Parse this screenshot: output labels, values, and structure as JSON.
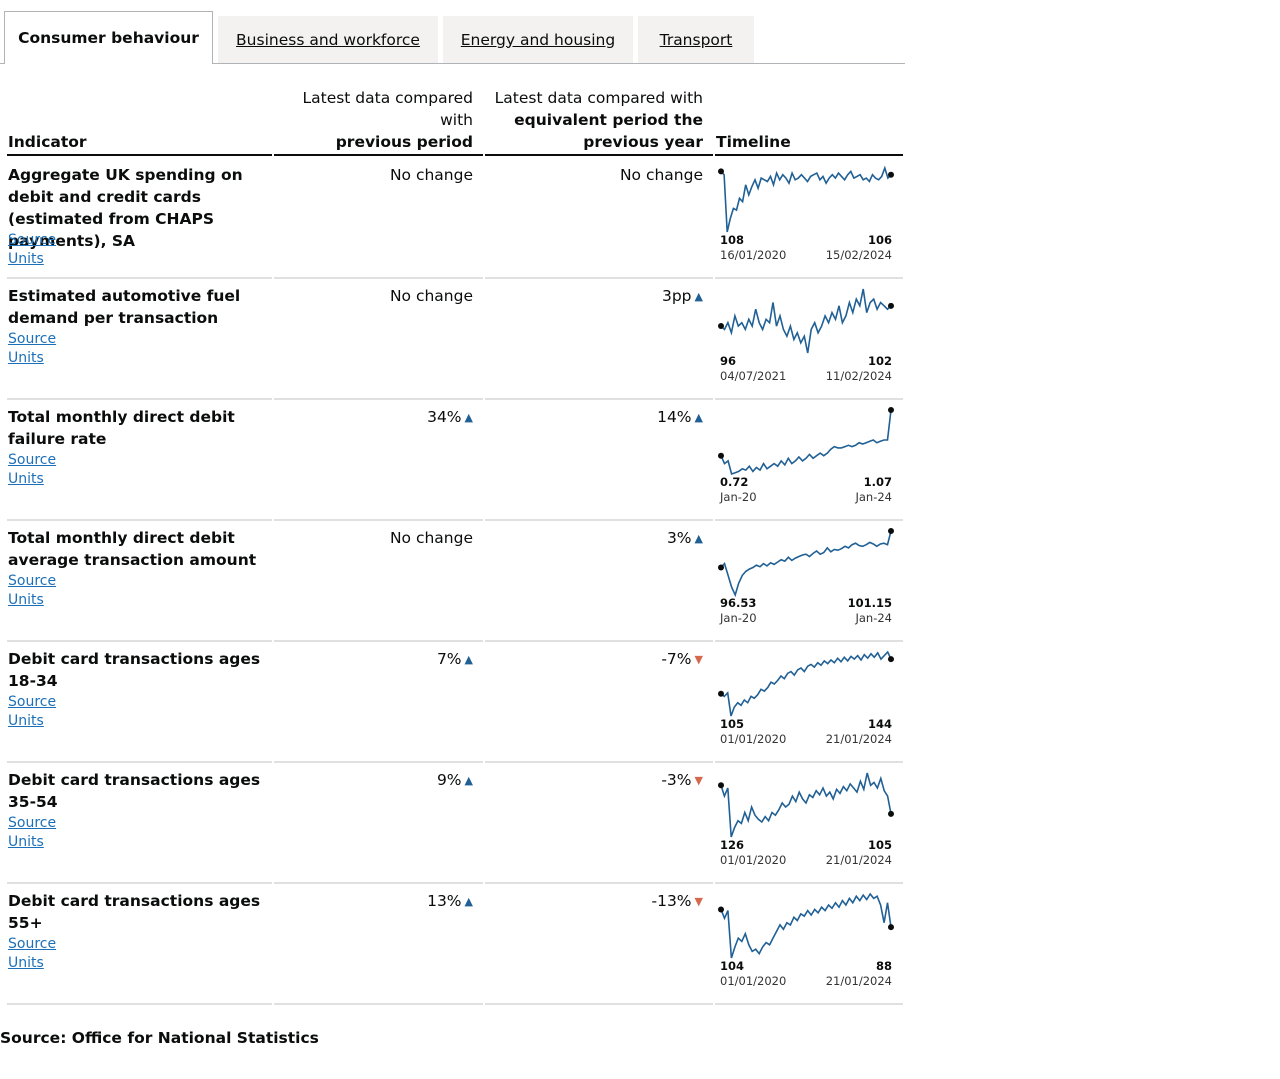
{
  "tabs": [
    {
      "label": "Consumer behaviour",
      "active": true
    },
    {
      "label": "Business and workforce",
      "active": false
    },
    {
      "label": "Energy and housing",
      "active": false
    },
    {
      "label": "Transport",
      "active": false
    }
  ],
  "table": {
    "headers": {
      "indicator": "Indicator",
      "prev_line1": "Latest data compared",
      "prev_line2": "with",
      "prev_line3": "previous period",
      "year_line1": "Latest data compared with",
      "year_line2": "equivalent period the",
      "year_line3": "previous year",
      "timeline": "Timeline"
    },
    "link_source": "Source",
    "link_units": "Units",
    "rows": [
      {
        "title": "Aggregate UK spending on debit and credit cards (estimated from CHAPS payments), SA",
        "prev": {
          "text": "No change",
          "dir": "none"
        },
        "year": {
          "text": "No change",
          "dir": "none"
        },
        "spark": {
          "start_value": "108",
          "end_value": "106",
          "start_date": "16/01/2020",
          "end_date": "15/02/2024",
          "series": [
            108,
            106,
            72,
            80,
            86,
            85,
            92,
            90,
            100,
            94,
            99,
            103,
            98,
            104,
            103,
            102,
            105,
            100,
            107,
            103,
            106,
            104,
            101,
            107,
            103,
            104,
            106,
            104,
            102,
            105,
            106,
            107,
            103,
            105,
            101,
            104,
            106,
            104,
            107,
            105,
            103,
            106,
            108,
            104,
            105,
            106,
            103,
            104,
            102,
            106,
            104,
            103,
            105,
            110,
            104,
            106
          ]
        }
      },
      {
        "title": "Estimated automotive fuel demand per transaction",
        "prev": {
          "text": "No change",
          "dir": "none"
        },
        "year": {
          "text": "3pp",
          "dir": "up"
        },
        "spark": {
          "start_value": "96",
          "end_value": "102",
          "start_date": "04/07/2021",
          "end_date": "11/02/2024",
          "series": [
            96,
            95,
            97,
            94,
            99,
            96,
            97,
            95,
            98,
            96,
            101,
            97,
            95,
            98,
            97,
            103,
            96,
            99,
            95,
            93,
            96,
            92,
            94,
            91,
            93,
            88,
            95,
            97,
            94,
            96,
            99,
            97,
            100,
            98,
            102,
            97,
            99,
            103,
            100,
            104,
            102,
            107,
            100,
            103,
            104,
            101,
            103,
            102,
            101,
            102
          ]
        }
      },
      {
        "title": "Total monthly direct debit failure rate",
        "prev": {
          "text": "34%",
          "dir": "up"
        },
        "year": {
          "text": "14%",
          "dir": "up"
        },
        "spark": {
          "start_value": "0.72",
          "end_value": "1.07",
          "start_date": "Jan-20",
          "end_date": "Jan-24",
          "series": [
            0.72,
            0.66,
            0.68,
            0.58,
            0.59,
            0.6,
            0.62,
            0.61,
            0.64,
            0.6,
            0.63,
            0.61,
            0.66,
            0.62,
            0.64,
            0.66,
            0.64,
            0.68,
            0.65,
            0.7,
            0.66,
            0.68,
            0.71,
            0.68,
            0.7,
            0.73,
            0.7,
            0.72,
            0.74,
            0.72,
            0.74,
            0.77,
            0.79,
            0.78,
            0.78,
            0.79,
            0.8,
            0.79,
            0.8,
            0.82,
            0.81,
            0.82,
            0.83,
            0.84,
            0.82,
            0.83,
            0.84,
            0.84,
            1.07
          ]
        }
      },
      {
        "title": "Total monthly direct debit average transaction amount",
        "prev": {
          "text": "No change",
          "dir": "none"
        },
        "year": {
          "text": "3%",
          "dir": "up"
        },
        "spark": {
          "start_value": "96.53",
          "end_value": "101.15",
          "start_date": "Jan-20",
          "end_date": "Jan-24",
          "series": [
            96.5,
            97.0,
            95.5,
            94.0,
            93.0,
            94.5,
            95.5,
            96.0,
            96.3,
            96.5,
            96.8,
            96.6,
            97.0,
            96.7,
            97.1,
            96.9,
            97.2,
            97.5,
            97.3,
            97.8,
            97.4,
            97.7,
            97.9,
            98.1,
            98.2,
            97.9,
            98.3,
            98.6,
            98.2,
            98.4,
            99.0,
            98.5,
            98.8,
            98.7,
            98.9,
            99.2,
            99.0,
            99.4,
            99.6,
            99.3,
            99.2,
            99.4,
            99.7,
            99.5,
            99.2,
            99.5,
            99.6,
            99.4,
            101.15
          ]
        }
      },
      {
        "title": "Debit card transactions ages 18-34",
        "prev": {
          "text": "7%",
          "dir": "up"
        },
        "year": {
          "text": "-7%",
          "dir": "down"
        },
        "spark": {
          "start_value": "105",
          "end_value": "144",
          "start_date": "01/01/2020",
          "end_date": "21/01/2024",
          "series": [
            105,
            102,
            106,
            80,
            90,
            95,
            92,
            98,
            95,
            102,
            100,
            104,
            110,
            108,
            112,
            118,
            116,
            120,
            125,
            122,
            128,
            130,
            126,
            132,
            134,
            130,
            136,
            138,
            135,
            140,
            137,
            142,
            139,
            143,
            140,
            145,
            141,
            146,
            142,
            147,
            144,
            148,
            143,
            149,
            145,
            150,
            146,
            151,
            144,
            148,
            152,
            144
          ]
        }
      },
      {
        "title": "Debit card transactions ages 35-54",
        "prev": {
          "text": "9%",
          "dir": "up"
        },
        "year": {
          "text": "-3%",
          "dir": "down"
        },
        "spark": {
          "start_value": "126",
          "end_value": "105",
          "start_date": "01/01/2020",
          "end_date": "21/01/2024",
          "series": [
            126,
            118,
            124,
            88,
            95,
            100,
            98,
            106,
            100,
            110,
            104,
            101,
            99,
            103,
            100,
            106,
            104,
            108,
            113,
            110,
            112,
            118,
            114,
            121,
            116,
            113,
            119,
            117,
            122,
            119,
            124,
            118,
            121,
            116,
            123,
            120,
            125,
            122,
            127,
            124,
            121,
            129,
            123,
            135,
            126,
            128,
            124,
            131,
            122,
            118,
            105
          ]
        }
      },
      {
        "title": "Debit card transactions ages 55+",
        "prev": {
          "text": "13%",
          "dir": "up"
        },
        "year": {
          "text": "-13%",
          "dir": "down"
        },
        "spark": {
          "start_value": "104",
          "end_value": "88",
          "start_date": "01/01/2020",
          "end_date": "21/01/2024",
          "series": [
            104,
            96,
            103,
            60,
            70,
            78,
            75,
            82,
            72,
            66,
            68,
            64,
            70,
            74,
            72,
            78,
            84,
            90,
            86,
            92,
            90,
            97,
            94,
            100,
            98,
            103,
            99,
            104,
            101,
            106,
            103,
            108,
            105,
            110,
            106,
            112,
            108,
            114,
            110,
            116,
            112,
            117,
            113,
            118,
            114,
            116,
            108,
            92,
            110,
            88
          ]
        }
      }
    ]
  },
  "footer": "Source: Office for National Statistics",
  "colors": {
    "line": "#206095",
    "up": "#206095",
    "down": "#d4694f",
    "link": "#1d70b8"
  }
}
